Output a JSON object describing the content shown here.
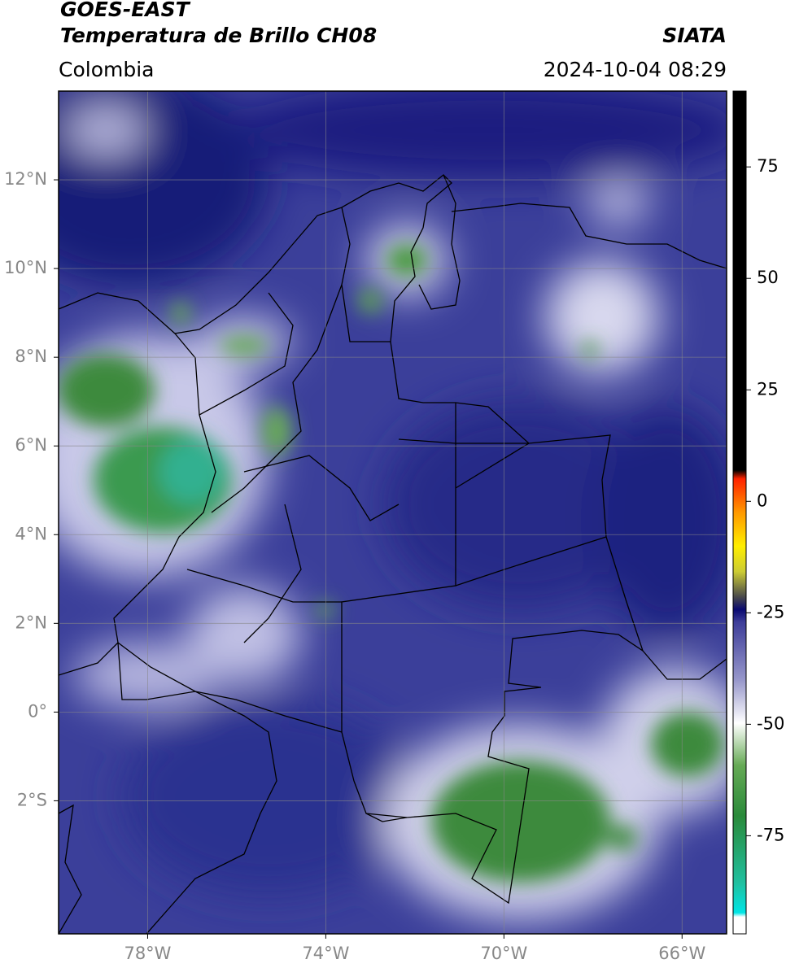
{
  "header": {
    "title_line1": "GOES-EAST",
    "title_line2": "Temperatura de Brillo CH08",
    "region": "Colombia",
    "source": "SIATA",
    "datetime": "2024-10-04 08:29"
  },
  "map": {
    "xlim": [
      -80,
      -65
    ],
    "ylim": [
      -5,
      14
    ],
    "grid": true,
    "xticks": [
      {
        "value": -78,
        "label": "78°W"
      },
      {
        "value": -74,
        "label": "74°W"
      },
      {
        "value": -70,
        "label": "70°W"
      },
      {
        "value": -66,
        "label": "66°W"
      }
    ],
    "yticks": [
      {
        "value": 12,
        "label": "12°N"
      },
      {
        "value": 10,
        "label": "10°N"
      },
      {
        "value": 8,
        "label": "8°N"
      },
      {
        "value": 6,
        "label": "6°N"
      },
      {
        "value": 4,
        "label": "4°N"
      },
      {
        "value": 2,
        "label": "2°N"
      },
      {
        "value": 0,
        "label": "0°"
      },
      {
        "value": -2,
        "label": "2°S"
      }
    ]
  },
  "colorbar": {
    "lim": [
      -97,
      92
    ],
    "ticks": [
      75,
      50,
      25,
      0,
      -25,
      -50,
      -75
    ]
  }
}
